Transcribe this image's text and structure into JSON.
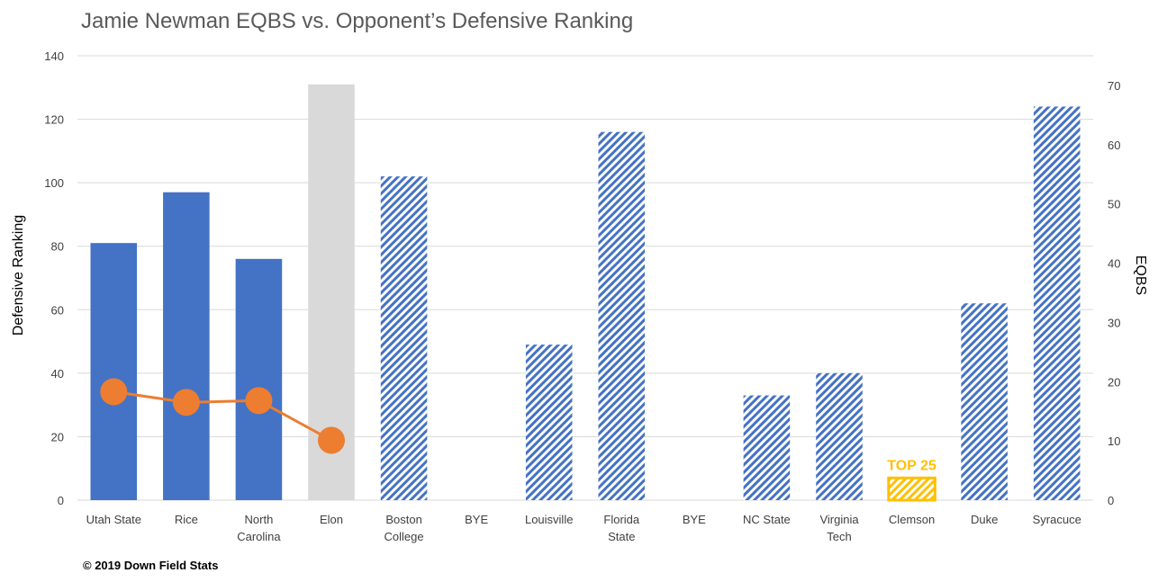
{
  "title": "Jamie Newman EQBS vs. Opponent’s Defensive Ranking",
  "copyright": "© 2019  Down Field Stats",
  "colors": {
    "played": "#4472C4",
    "fcs": "#D9D9D9",
    "upcoming_hatch": "#4472C4",
    "top25": "#FFC000",
    "eqbs_line": "#ED7D31",
    "grid": "#D9D9D9"
  },
  "chart_data": {
    "type": "bar",
    "categories": [
      [
        "Utah State"
      ],
      [
        "Rice"
      ],
      [
        "North",
        "Carolina"
      ],
      [
        "Elon"
      ],
      [
        "Boston",
        "College"
      ],
      [
        "BYE"
      ],
      [
        "Louisville"
      ],
      [
        "Florida",
        "State"
      ],
      [
        "BYE"
      ],
      [
        "NC State"
      ],
      [
        "Virginia",
        "Tech"
      ],
      [
        "Clemson"
      ],
      [
        "Duke"
      ],
      [
        "Syracuce"
      ]
    ],
    "ylabel": "Defensive  Ranking",
    "y2label": "EQBS",
    "ylim": [
      0,
      140
    ],
    "yticks": [
      0,
      20,
      40,
      60,
      80,
      100,
      120,
      140
    ],
    "y2lim": [
      0,
      75
    ],
    "y2ticks": [
      0,
      10,
      20,
      30,
      40,
      50,
      60,
      70
    ],
    "grid": true,
    "series": [
      {
        "kind": "bar",
        "axis": "left",
        "values": [
          81,
          97,
          76,
          131,
          102,
          null,
          49,
          116,
          null,
          33,
          40,
          7,
          62,
          124
        ],
        "styles": [
          "played",
          "played",
          "played",
          "fcs",
          "upcoming",
          null,
          "upcoming",
          "upcoming",
          null,
          "upcoming",
          "upcoming",
          "top25",
          "upcoming",
          "upcoming"
        ]
      },
      {
        "kind": "line",
        "axis": "right",
        "values": [
          18.3,
          16.5,
          16.8,
          10.1,
          null,
          null,
          null,
          null,
          null,
          null,
          null,
          null,
          null,
          null
        ]
      }
    ],
    "annotations": [
      {
        "text": "TOP 25",
        "category_index": 11
      }
    ]
  }
}
